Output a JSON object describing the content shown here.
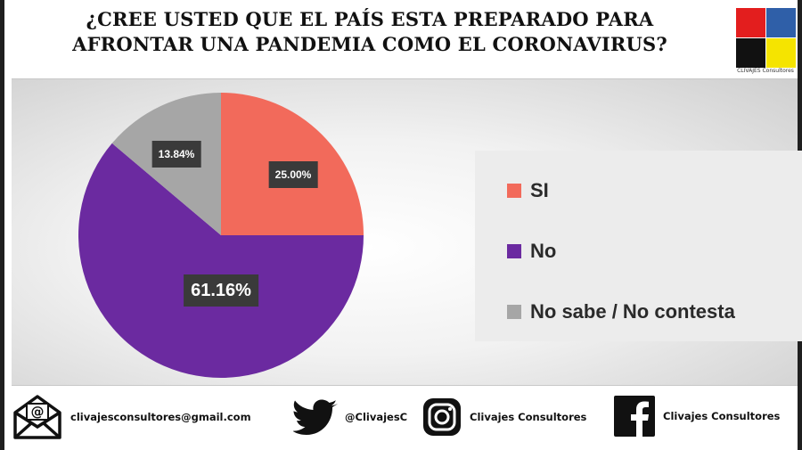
{
  "header": {
    "title_line1": "¿CREE USTED QUE EL PAÍS ESTA PREPARADO PARA",
    "title_line2": "AFRONTAR UNA PANDEMIA COMO EL CORONAVIRUS?",
    "logo_caption": "CLIVAJES Consultores",
    "logo_colors": [
      "#e31e1e",
      "#2f5fa8",
      "#111111",
      "#f5e400"
    ]
  },
  "chart_data": {
    "type": "pie",
    "title": "¿CREE USTED QUE EL PAÍS ESTA PREPARADO PARA AFRONTAR UNA PANDEMIA COMO EL CORONAVIRUS?",
    "legend_position": "right",
    "slices": [
      {
        "label": "SI",
        "value": 25.0,
        "display": "25.00%",
        "color": "#f26a5b"
      },
      {
        "label": "No",
        "value": 61.16,
        "display": "61.16%",
        "color": "#6b2aa0"
      },
      {
        "label": "No sabe / No contesta",
        "value": 13.84,
        "display": "13.84%",
        "color": "#a6a6a6"
      }
    ]
  },
  "footer": {
    "email": "clivajesconsultores@gmail.com",
    "twitter": "@ClivajesC",
    "instagram": "Clivajes Consultores",
    "facebook": "Clivajes Consultores"
  }
}
